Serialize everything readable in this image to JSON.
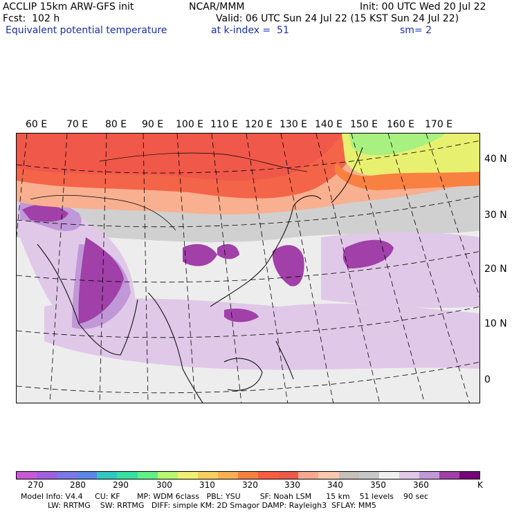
{
  "header": {
    "model_title": "ACCLIP 15km ARW-GFS init",
    "center": "NCAR/MMM",
    "init": "Init: 00 UTC Wed 20 Jul 22",
    "forecast": "Fcst:  102 h",
    "valid": "Valid: 06 UTC Sun 24 Jul 22 (15 KST Sun 24 Jul 22)",
    "field": "Equivalent potential temperature",
    "level": "at k-index =  51",
    "smoothing": "sm= 2"
  },
  "map": {
    "lon_labels": [
      "60 E",
      "70 E",
      "80 E",
      "90 E",
      "100 E",
      "110 E",
      "120 E",
      "130 E",
      "140 E",
      "150 E",
      "160 E",
      "170 E"
    ],
    "lat_labels": [
      "40 N",
      "30 N",
      "20 N",
      "10 N",
      "0"
    ]
  },
  "colorbar": {
    "colors": [
      "#c85ad8",
      "#a060e0",
      "#7c78e8",
      "#5a88e8",
      "#30c8c0",
      "#38e0a0",
      "#60f088",
      "#b8f870",
      "#f0f070",
      "#f8d060",
      "#f8b050",
      "#f88040",
      "#f85c40",
      "#f05848",
      "#f8a890",
      "#f8c8b0",
      "#c8c0b8",
      "#c8c8c8",
      "#f0f0f0",
      "#e0c8e8",
      "#c098d8",
      "#a040a8",
      "#780078"
    ],
    "tick_labels": [
      "270",
      "280",
      "290",
      "300",
      "310",
      "320",
      "330",
      "340",
      "350",
      "360",
      "K"
    ]
  },
  "footer": {
    "line1": "Model Info: V4.4     CU: KF       MP: WDM 6class   PBL: YSU        SF: Noah LSM      15 km    51 levels    90 sec",
    "line2": "LW: RRTMG    SW: RRTMG   DIFF: simple KM: 2D Smagor DAMP: Rayleigh3  SFLAY: MM5"
  }
}
